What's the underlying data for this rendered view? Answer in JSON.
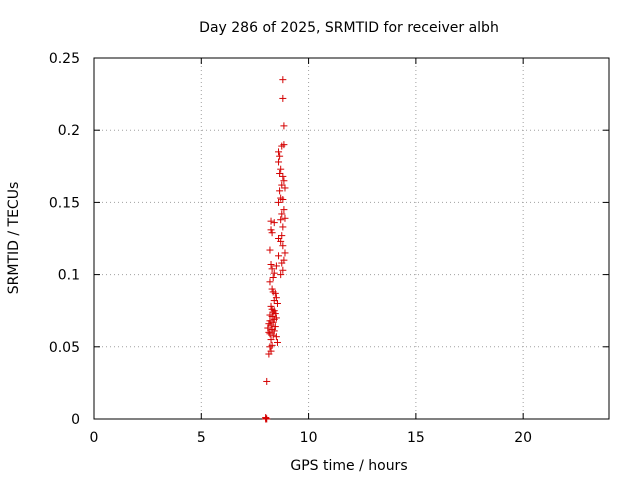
{
  "chart_data": {
    "type": "scatter",
    "title": "Day 286 of 2025, SRMTID for receiver albh",
    "xlabel": "GPS time / hours",
    "ylabel": "SRMTID / TECUs",
    "xlim": [
      0,
      24
    ],
    "ylim": [
      0,
      0.25
    ],
    "xticks": [
      0,
      5,
      10,
      15,
      20
    ],
    "yticks": [
      0,
      0.05,
      0.1,
      0.15,
      0.2,
      0.25
    ],
    "xtick_labels": [
      "0",
      "5",
      "10",
      "15",
      "20"
    ],
    "ytick_labels": [
      "0",
      "0.05",
      "0.1",
      "0.15",
      "0.2",
      "0.25"
    ],
    "grid": true,
    "marker": "+",
    "color": "#d40000",
    "series": [
      {
        "name": "SRMTID",
        "points": [
          [
            8.8,
            0.235
          ],
          [
            8.8,
            0.222
          ],
          [
            8.85,
            0.203
          ],
          [
            8.85,
            0.19
          ],
          [
            8.75,
            0.189
          ],
          [
            8.6,
            0.185
          ],
          [
            8.65,
            0.182
          ],
          [
            8.6,
            0.178
          ],
          [
            8.7,
            0.173
          ],
          [
            8.65,
            0.17
          ],
          [
            8.8,
            0.168
          ],
          [
            8.85,
            0.165
          ],
          [
            8.75,
            0.162
          ],
          [
            8.9,
            0.16
          ],
          [
            8.65,
            0.158
          ],
          [
            8.7,
            0.153
          ],
          [
            8.8,
            0.152
          ],
          [
            8.6,
            0.15
          ],
          [
            8.85,
            0.145
          ],
          [
            8.75,
            0.142
          ],
          [
            8.9,
            0.139
          ],
          [
            8.7,
            0.138
          ],
          [
            8.25,
            0.137
          ],
          [
            8.4,
            0.136
          ],
          [
            8.8,
            0.133
          ],
          [
            8.25,
            0.131
          ],
          [
            8.3,
            0.129
          ],
          [
            8.75,
            0.127
          ],
          [
            8.6,
            0.125
          ],
          [
            8.7,
            0.123
          ],
          [
            8.8,
            0.12
          ],
          [
            8.2,
            0.117
          ],
          [
            8.9,
            0.115
          ],
          [
            8.6,
            0.113
          ],
          [
            8.85,
            0.11
          ],
          [
            8.75,
            0.108
          ],
          [
            8.25,
            0.107
          ],
          [
            8.5,
            0.106
          ],
          [
            8.3,
            0.104
          ],
          [
            8.8,
            0.103
          ],
          [
            8.4,
            0.101
          ],
          [
            8.7,
            0.1
          ],
          [
            8.35,
            0.098
          ],
          [
            8.2,
            0.095
          ],
          [
            8.3,
            0.09
          ],
          [
            8.35,
            0.088
          ],
          [
            8.45,
            0.087
          ],
          [
            8.5,
            0.084
          ],
          [
            8.4,
            0.082
          ],
          [
            8.55,
            0.08
          ],
          [
            8.25,
            0.078
          ],
          [
            8.3,
            0.076
          ],
          [
            8.4,
            0.075
          ],
          [
            8.35,
            0.074
          ],
          [
            8.45,
            0.073
          ],
          [
            8.2,
            0.072
          ],
          [
            8.3,
            0.071
          ],
          [
            8.5,
            0.07
          ],
          [
            8.4,
            0.069
          ],
          [
            8.2,
            0.068
          ],
          [
            8.35,
            0.067
          ],
          [
            8.15,
            0.066
          ],
          [
            8.25,
            0.065
          ],
          [
            8.45,
            0.064
          ],
          [
            8.1,
            0.063
          ],
          [
            8.3,
            0.062
          ],
          [
            8.4,
            0.061
          ],
          [
            8.15,
            0.06
          ],
          [
            8.2,
            0.059
          ],
          [
            8.35,
            0.058
          ],
          [
            8.5,
            0.057
          ],
          [
            8.25,
            0.055
          ],
          [
            8.55,
            0.053
          ],
          [
            8.3,
            0.051
          ],
          [
            8.2,
            0.05
          ],
          [
            8.25,
            0.047
          ],
          [
            8.15,
            0.045
          ],
          [
            8.05,
            0.026
          ],
          [
            8.0,
            0.001
          ],
          [
            8.0,
            0.0
          ],
          [
            8.05,
            0.0
          ],
          [
            8.02,
            0.0005
          ]
        ]
      }
    ]
  }
}
